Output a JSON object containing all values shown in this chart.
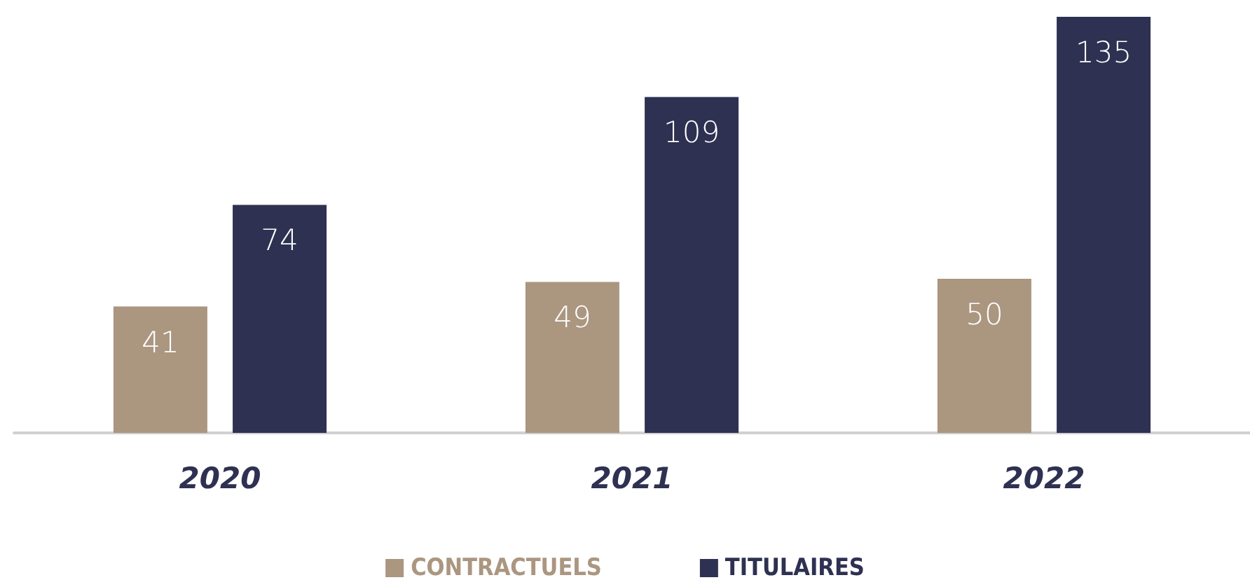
{
  "chart_data": {
    "type": "bar",
    "categories": [
      "2020",
      "2021",
      "2022"
    ],
    "series": [
      {
        "name": "CONTRACTUELS",
        "color": "#ab9680",
        "values": [
          41,
          49,
          50
        ]
      },
      {
        "name": "TITULAIRES",
        "color": "#2e3151",
        "values": [
          74,
          109,
          135
        ]
      }
    ],
    "data_labels": true,
    "legend": "bottom"
  }
}
